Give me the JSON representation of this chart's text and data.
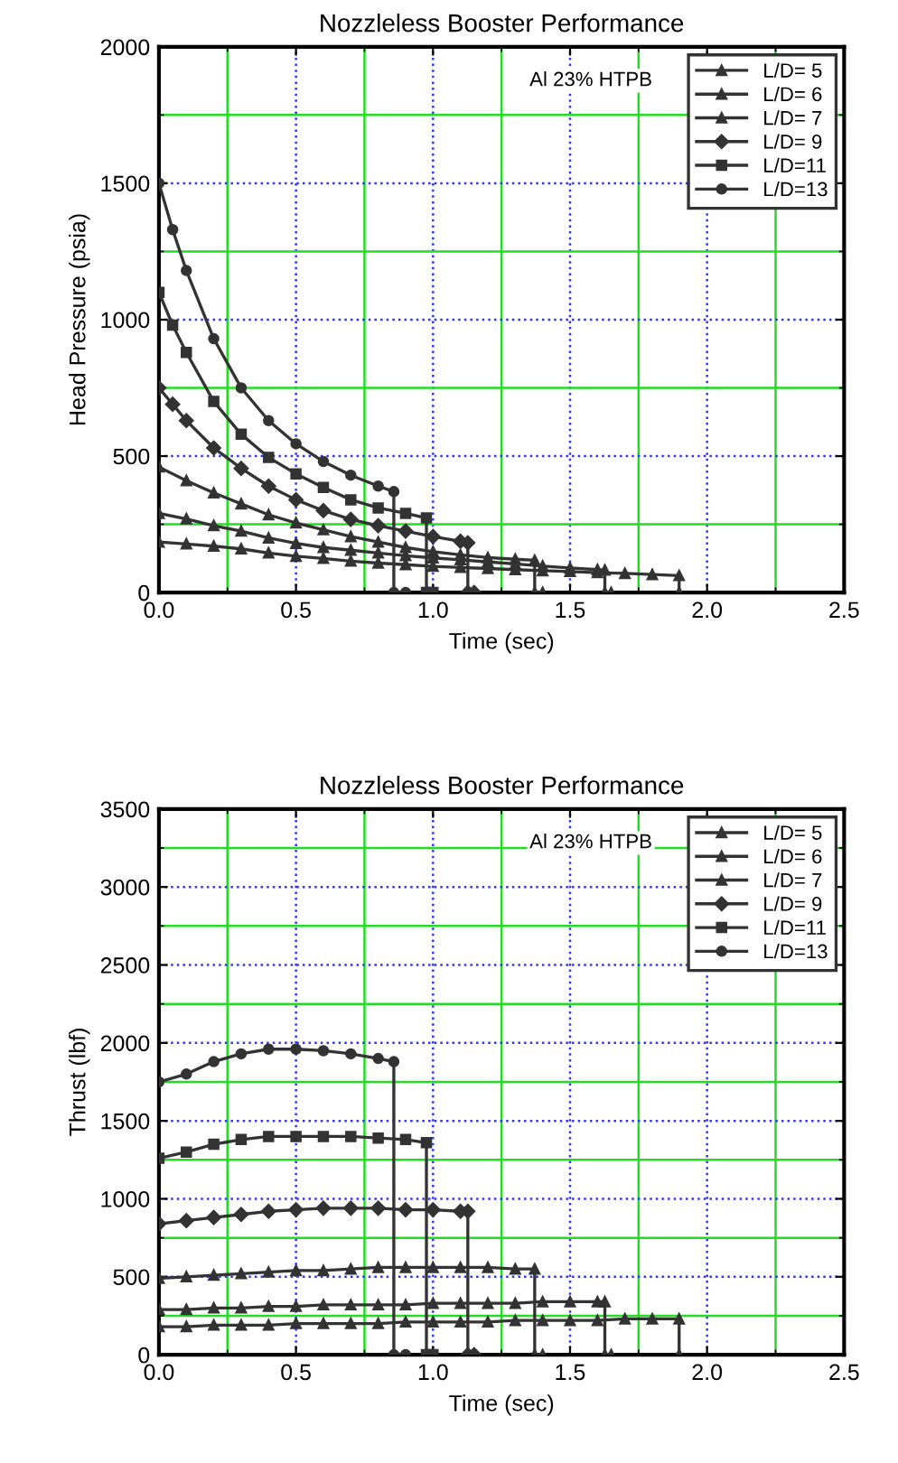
{
  "chart_data": [
    {
      "type": "line",
      "title": "Nozzleless Booster Performance",
      "xlabel": "Time (sec)",
      "ylabel": "Head Pressure (psia)",
      "annotations": [
        "Al 23% HTPB"
      ],
      "xlim": [
        0,
        2.5
      ],
      "ylim": [
        0,
        2000
      ],
      "xticks": [
        {
          "value": 0,
          "label": "0.0"
        },
        {
          "value": 0.25,
          "label": null
        },
        {
          "value": 0.5,
          "label": "0.5"
        },
        {
          "value": 0.75,
          "label": null
        },
        {
          "value": 1,
          "label": "1.0"
        },
        {
          "value": 1.25,
          "label": null
        },
        {
          "value": 1.5,
          "label": "1.5"
        },
        {
          "value": 1.75,
          "label": null
        },
        {
          "value": 2,
          "label": "2.0"
        },
        {
          "value": 2.25,
          "label": null
        },
        {
          "value": 2.5,
          "label": "2.5"
        }
      ],
      "yticks": [
        0,
        {
          "value": 250,
          "label": null
        },
        500,
        {
          "value": 750,
          "label": null
        },
        1000,
        {
          "value": 1250,
          "label": null
        },
        1500,
        {
          "value": 1750,
          "label": null
        },
        2000
      ],
      "grid": true,
      "legend": "top right",
      "series": [
        {
          "name": "L/D= 5",
          "color": "#333333",
          "marker": "triangle",
          "x": [
            0,
            0.1,
            0.2,
            0.3,
            0.4,
            0.5,
            0.6,
            0.7,
            0.8,
            0.9,
            1.0,
            1.1,
            1.2,
            1.3,
            1.4,
            1.5,
            1.6,
            1.7,
            1.8,
            1.898,
            1.898
          ],
          "values": [
            185,
            178,
            170,
            160,
            145,
            133,
            125,
            115,
            108,
            102,
            96,
            92,
            88,
            84,
            80,
            77,
            73,
            70,
            66,
            62,
            0
          ]
        },
        {
          "name": "L/D= 6",
          "color": "#333333",
          "marker": "triangle",
          "x": [
            0,
            0.1,
            0.2,
            0.3,
            0.4,
            0.5,
            0.6,
            0.7,
            0.8,
            0.9,
            1.0,
            1.1,
            1.2,
            1.3,
            1.4,
            1.5,
            1.6,
            1.627,
            1.627,
            1.65
          ],
          "values": [
            290,
            270,
            245,
            225,
            200,
            180,
            165,
            155,
            145,
            135,
            127,
            120,
            112,
            105,
            97,
            90,
            84,
            82,
            0,
            0
          ]
        },
        {
          "name": "L/D= 7",
          "color": "#333333",
          "marker": "triangle",
          "x": [
            0,
            0.1,
            0.2,
            0.3,
            0.4,
            0.5,
            0.6,
            0.7,
            0.8,
            0.9,
            1.0,
            1.1,
            1.2,
            1.3,
            1.371,
            1.371,
            1.4
          ],
          "values": [
            460,
            410,
            365,
            325,
            285,
            255,
            230,
            205,
            185,
            165,
            150,
            138,
            128,
            122,
            118,
            0,
            0
          ]
        },
        {
          "name": "L/D= 9",
          "color": "#333333",
          "marker": "diamond",
          "x": [
            0,
            0.05,
            0.1,
            0.2,
            0.3,
            0.4,
            0.5,
            0.6,
            0.7,
            0.8,
            0.9,
            1.0,
            1.1,
            1.127,
            1.127,
            1.15
          ],
          "values": [
            750,
            690,
            630,
            530,
            455,
            390,
            340,
            300,
            268,
            245,
            225,
            205,
            188,
            182,
            0,
            0
          ]
        },
        {
          "name": "L/D=11",
          "color": "#333333",
          "marker": "square",
          "x": [
            0,
            0.05,
            0.1,
            0.2,
            0.3,
            0.4,
            0.5,
            0.6,
            0.7,
            0.8,
            0.9,
            0.976,
            0.976,
            1.0
          ],
          "values": [
            1100,
            980,
            880,
            700,
            580,
            495,
            435,
            385,
            340,
            310,
            290,
            273,
            0,
            0
          ]
        },
        {
          "name": "L/D=13",
          "color": "#333333",
          "marker": "circle",
          "x": [
            0,
            0.05,
            0.1,
            0.2,
            0.3,
            0.4,
            0.5,
            0.6,
            0.7,
            0.8,
            0.857,
            0.857,
            0.9
          ],
          "values": [
            1500,
            1330,
            1180,
            930,
            750,
            630,
            545,
            480,
            430,
            390,
            370,
            0,
            0
          ]
        }
      ]
    },
    {
      "type": "line",
      "title": "Nozzleless Booster Performance",
      "xlabel": "Time (sec)",
      "ylabel": "Thrust (lbf)",
      "annotations": [
        "Al 23% HTPB"
      ],
      "xlim": [
        0,
        2.5
      ],
      "ylim": [
        0,
        3500
      ],
      "xticks": [
        {
          "value": 0,
          "label": "0.0"
        },
        {
          "value": 0.25,
          "label": null
        },
        {
          "value": 0.5,
          "label": "0.5"
        },
        {
          "value": 0.75,
          "label": null
        },
        {
          "value": 1,
          "label": "1.0"
        },
        {
          "value": 1.25,
          "label": null
        },
        {
          "value": 1.5,
          "label": "1.5"
        },
        {
          "value": 1.75,
          "label": null
        },
        {
          "value": 2,
          "label": "2.0"
        },
        {
          "value": 2.25,
          "label": null
        },
        {
          "value": 2.5,
          "label": "2.5"
        }
      ],
      "yticks": [
        0,
        {
          "value": 250,
          "label": null
        },
        500,
        {
          "value": 750,
          "label": null
        },
        1000,
        {
          "value": 1250,
          "label": null
        },
        1500,
        {
          "value": 1750,
          "label": null
        },
        2000,
        {
          "value": 2250,
          "label": null
        },
        2500,
        {
          "value": 2750,
          "label": null
        },
        3000,
        {
          "value": 3250,
          "label": null
        },
        3500
      ],
      "grid": true,
      "legend": "top right",
      "series": [
        {
          "name": "L/D= 5",
          "color": "#333333",
          "marker": "triangle",
          "x": [
            0,
            0.1,
            0.2,
            0.3,
            0.4,
            0.5,
            0.6,
            0.7,
            0.8,
            0.9,
            1.0,
            1.1,
            1.2,
            1.3,
            1.4,
            1.5,
            1.6,
            1.7,
            1.8,
            1.898,
            1.898
          ],
          "values": [
            180,
            180,
            190,
            190,
            190,
            200,
            200,
            200,
            200,
            210,
            210,
            210,
            210,
            220,
            220,
            220,
            220,
            230,
            230,
            230,
            0
          ]
        },
        {
          "name": "L/D= 6",
          "color": "#333333",
          "marker": "triangle",
          "x": [
            0,
            0.1,
            0.2,
            0.3,
            0.4,
            0.5,
            0.6,
            0.7,
            0.8,
            0.9,
            1.0,
            1.1,
            1.2,
            1.3,
            1.4,
            1.5,
            1.6,
            1.627,
            1.627,
            1.65
          ],
          "values": [
            290,
            290,
            300,
            300,
            310,
            310,
            320,
            320,
            320,
            320,
            330,
            330,
            330,
            330,
            340,
            340,
            340,
            340,
            0,
            0
          ]
        },
        {
          "name": "L/D= 7",
          "color": "#333333",
          "marker": "triangle",
          "x": [
            0,
            0.1,
            0.2,
            0.3,
            0.4,
            0.5,
            0.6,
            0.7,
            0.8,
            0.9,
            1.0,
            1.1,
            1.2,
            1.3,
            1.371,
            1.371,
            1.4
          ],
          "values": [
            490,
            500,
            510,
            520,
            530,
            540,
            540,
            550,
            560,
            560,
            560,
            560,
            560,
            550,
            550,
            0,
            0
          ]
        },
        {
          "name": "L/D= 9",
          "color": "#333333",
          "marker": "diamond",
          "x": [
            0,
            0.1,
            0.2,
            0.3,
            0.4,
            0.5,
            0.6,
            0.7,
            0.8,
            0.9,
            1.0,
            1.1,
            1.127,
            1.127,
            1.15
          ],
          "values": [
            840,
            860,
            880,
            900,
            920,
            930,
            940,
            940,
            940,
            930,
            930,
            920,
            920,
            0,
            0
          ]
        },
        {
          "name": "L/D=11",
          "color": "#333333",
          "marker": "square",
          "x": [
            0,
            0.1,
            0.2,
            0.3,
            0.4,
            0.5,
            0.6,
            0.7,
            0.8,
            0.9,
            0.976,
            0.976,
            1.0
          ],
          "values": [
            1260,
            1300,
            1350,
            1380,
            1400,
            1400,
            1400,
            1400,
            1390,
            1380,
            1360,
            0,
            0
          ]
        },
        {
          "name": "L/D=13",
          "color": "#333333",
          "marker": "circle",
          "x": [
            0,
            0.1,
            0.2,
            0.3,
            0.4,
            0.5,
            0.6,
            0.7,
            0.8,
            0.857,
            0.857,
            0.9
          ],
          "values": [
            1750,
            1800,
            1880,
            1930,
            1960,
            1960,
            1950,
            1930,
            1900,
            1880,
            0,
            0
          ]
        }
      ]
    }
  ]
}
